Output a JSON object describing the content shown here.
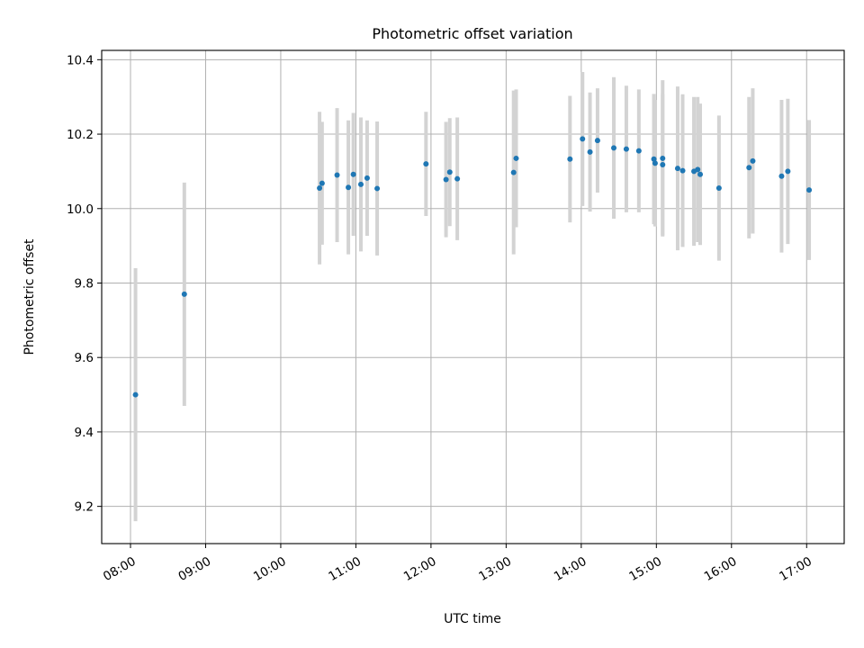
{
  "chart_data": {
    "type": "scatter",
    "title": "Photometric offset variation",
    "xlabel": "UTC time",
    "ylabel": "Photometric offset",
    "x_unit": "UTC time (HH:MM)",
    "xlim": [
      "07:37",
      "17:30"
    ],
    "ylim": [
      9.1,
      10.425
    ],
    "x_ticks": [
      "08:00",
      "09:00",
      "10:00",
      "11:00",
      "12:00",
      "13:00",
      "14:00",
      "15:00",
      "16:00",
      "17:00"
    ],
    "y_ticks": [
      9.2,
      9.4,
      9.6,
      9.8,
      10.0,
      10.2,
      10.4
    ],
    "y_tick_labels": [
      "9.2",
      "9.4",
      "9.6",
      "9.8",
      "10.0",
      "10.2",
      "10.4"
    ],
    "grid": true,
    "colors": {
      "points": "#1f77b4",
      "error_bars": "#d3d3d3",
      "grid": "#b0b0b0"
    },
    "series": [
      {
        "points": [
          {
            "x": "08:04",
            "y": 9.5,
            "err": 0.34
          },
          {
            "x": "08:43",
            "y": 9.77,
            "err": 0.3
          },
          {
            "x": "10:31",
            "y": 10.055,
            "err": 0.205
          },
          {
            "x": "10:33",
            "y": 10.068,
            "err": 0.165
          },
          {
            "x": "10:45",
            "y": 10.09,
            "err": 0.18
          },
          {
            "x": "10:54",
            "y": 10.057,
            "err": 0.18
          },
          {
            "x": "10:58",
            "y": 10.092,
            "err": 0.165
          },
          {
            "x": "11:04",
            "y": 10.065,
            "err": 0.18
          },
          {
            "x": "11:09",
            "y": 10.082,
            "err": 0.155
          },
          {
            "x": "11:17",
            "y": 10.054,
            "err": 0.18
          },
          {
            "x": "11:56",
            "y": 10.12,
            "err": 0.14
          },
          {
            "x": "12:12",
            "y": 10.078,
            "err": 0.155
          },
          {
            "x": "12:15",
            "y": 10.098,
            "err": 0.145
          },
          {
            "x": "12:21",
            "y": 10.08,
            "err": 0.165
          },
          {
            "x": "13:06",
            "y": 10.097,
            "err": 0.22
          },
          {
            "x": "13:08",
            "y": 10.135,
            "err": 0.185
          },
          {
            "x": "13:51",
            "y": 10.133,
            "err": 0.17
          },
          {
            "x": "14:01",
            "y": 10.187,
            "err": 0.18
          },
          {
            "x": "14:07",
            "y": 10.152,
            "err": 0.16
          },
          {
            "x": "14:13",
            "y": 10.183,
            "err": 0.14
          },
          {
            "x": "14:26",
            "y": 10.163,
            "err": 0.19
          },
          {
            "x": "14:36",
            "y": 10.16,
            "err": 0.17
          },
          {
            "x": "14:46",
            "y": 10.155,
            "err": 0.165
          },
          {
            "x": "14:58",
            "y": 10.133,
            "err": 0.175
          },
          {
            "x": "14:59",
            "y": 10.122,
            "err": 0.17
          },
          {
            "x": "15:05",
            "y": 10.135,
            "err": 0.21
          },
          {
            "x": "15:05",
            "y": 10.118,
            "err": 0.19
          },
          {
            "x": "15:17",
            "y": 10.108,
            "err": 0.22
          },
          {
            "x": "15:21",
            "y": 10.102,
            "err": 0.205
          },
          {
            "x": "15:30",
            "y": 10.1,
            "err": 0.2
          },
          {
            "x": "15:33",
            "y": 10.105,
            "err": 0.195
          },
          {
            "x": "15:35",
            "y": 10.092,
            "err": 0.19
          },
          {
            "x": "15:50",
            "y": 10.055,
            "err": 0.195
          },
          {
            "x": "16:14",
            "y": 10.11,
            "err": 0.19
          },
          {
            "x": "16:17",
            "y": 10.128,
            "err": 0.195
          },
          {
            "x": "16:40",
            "y": 10.087,
            "err": 0.205
          },
          {
            "x": "16:45",
            "y": 10.1,
            "err": 0.195
          },
          {
            "x": "17:02",
            "y": 10.05,
            "err": 0.188
          }
        ]
      }
    ]
  }
}
